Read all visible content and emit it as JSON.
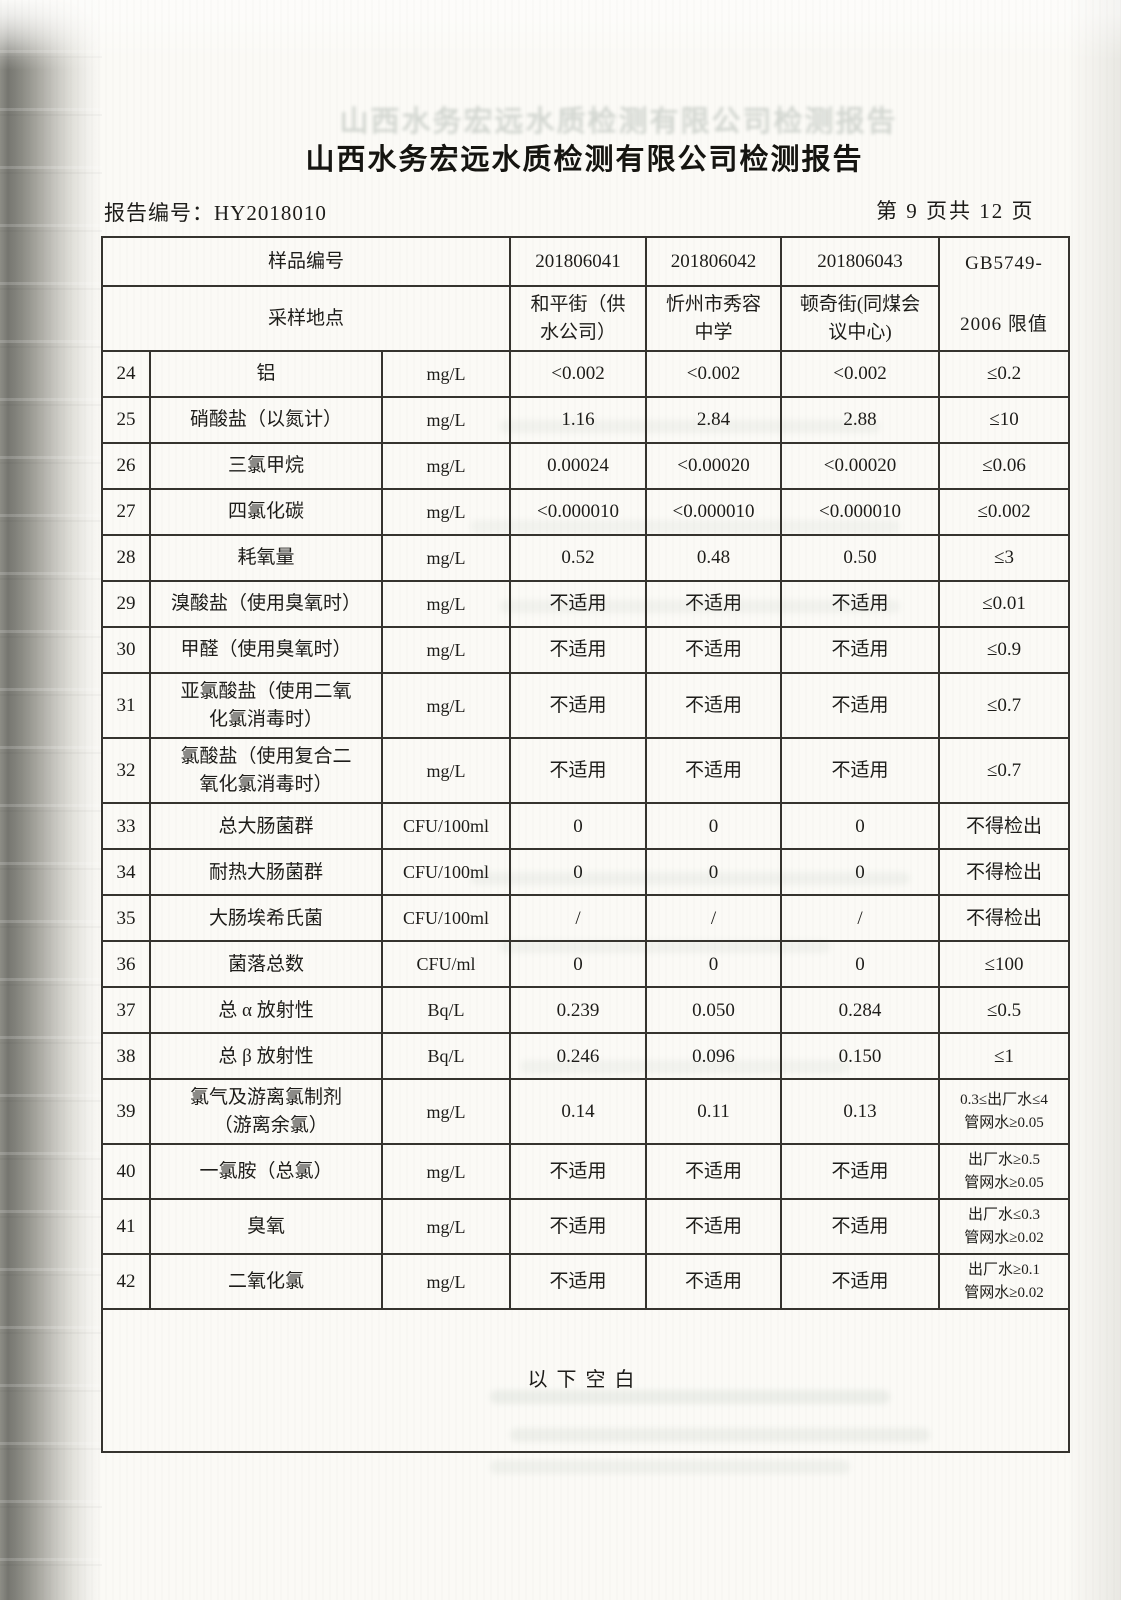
{
  "page": {
    "title": "山西水务宏远水质检测有限公司检测报告",
    "report_no_label": "报告编号：",
    "report_no": "HY2018010",
    "page_info": "第 9 页共 12 页"
  },
  "table": {
    "header": {
      "sample_id_label": "样品编号",
      "location_label": "采样地点",
      "sample_ids": [
        "201806041",
        "201806042",
        "201806043"
      ],
      "locations": [
        "和平街（供\n水公司）",
        "忻州市秀容\n中学",
        "顿奇街(同煤会\n议中心)"
      ],
      "limit_header_line1": "GB5749-",
      "limit_header_line2": "2006 限值"
    },
    "rows": [
      {
        "no": "24",
        "name": "铝",
        "unit": "mg/L",
        "values": [
          "<0.002",
          "<0.002",
          "<0.002"
        ],
        "limit": "≤0.2"
      },
      {
        "no": "25",
        "name": "硝酸盐（以氮计）",
        "unit": "mg/L",
        "values": [
          "1.16",
          "2.84",
          "2.88"
        ],
        "limit": "≤10"
      },
      {
        "no": "26",
        "name": "三氯甲烷",
        "unit": "mg/L",
        "values": [
          "0.00024",
          "<0.00020",
          "<0.00020"
        ],
        "limit": "≤0.06"
      },
      {
        "no": "27",
        "name": "四氯化碳",
        "unit": "mg/L",
        "values": [
          "<0.000010",
          "<0.000010",
          "<0.000010"
        ],
        "limit": "≤0.002"
      },
      {
        "no": "28",
        "name": "耗氧量",
        "unit": "mg/L",
        "values": [
          "0.52",
          "0.48",
          "0.50"
        ],
        "limit": "≤3"
      },
      {
        "no": "29",
        "name": "溴酸盐（使用臭氧时）",
        "unit": "mg/L",
        "values": [
          "不适用",
          "不适用",
          "不适用"
        ],
        "limit": "≤0.01"
      },
      {
        "no": "30",
        "name": "甲醛（使用臭氧时）",
        "unit": "mg/L",
        "values": [
          "不适用",
          "不适用",
          "不适用"
        ],
        "limit": "≤0.9"
      },
      {
        "no": "31",
        "name": "亚氯酸盐（使用二氧\n化氯消毒时）",
        "unit": "mg/L",
        "values": [
          "不适用",
          "不适用",
          "不适用"
        ],
        "limit": "≤0.7"
      },
      {
        "no": "32",
        "name": "氯酸盐（使用复合二\n氧化氯消毒时）",
        "unit": "mg/L",
        "values": [
          "不适用",
          "不适用",
          "不适用"
        ],
        "limit": "≤0.7"
      },
      {
        "no": "33",
        "name": "总大肠菌群",
        "unit": "CFU/100ml",
        "values": [
          "0",
          "0",
          "0"
        ],
        "limit": "不得检出"
      },
      {
        "no": "34",
        "name": "耐热大肠菌群",
        "unit": "CFU/100ml",
        "values": [
          "0",
          "0",
          "0"
        ],
        "limit": "不得检出"
      },
      {
        "no": "35",
        "name": "大肠埃希氏菌",
        "unit": "CFU/100ml",
        "values": [
          "/",
          "/",
          "/"
        ],
        "limit": "不得检出"
      },
      {
        "no": "36",
        "name": "菌落总数",
        "unit": "CFU/ml",
        "values": [
          "0",
          "0",
          "0"
        ],
        "limit": "≤100"
      },
      {
        "no": "37",
        "name": "总 α 放射性",
        "unit": "Bq/L",
        "values": [
          "0.239",
          "0.050",
          "0.284"
        ],
        "limit": "≤0.5"
      },
      {
        "no": "38",
        "name": "总 β 放射性",
        "unit": "Bq/L",
        "values": [
          "0.246",
          "0.096",
          "0.150"
        ],
        "limit": "≤1"
      },
      {
        "no": "39",
        "name": "氯气及游离氯制剂\n　（游离余氯）",
        "unit": "mg/L",
        "values": [
          "0.14",
          "0.11",
          "0.13"
        ],
        "limit": "0.3≤出厂水≤4\n管网水≥0.05"
      },
      {
        "no": "40",
        "name": "一氯胺（总氯）",
        "unit": "mg/L",
        "values": [
          "不适用",
          "不适用",
          "不适用"
        ],
        "limit": "出厂水≥0.5\n管网水≥0.05"
      },
      {
        "no": "41",
        "name": "臭氧",
        "unit": "mg/L",
        "values": [
          "不适用",
          "不适用",
          "不适用"
        ],
        "limit": "出厂水≤0.3\n管网水≥0.02"
      },
      {
        "no": "42",
        "name": "二氧化氯",
        "unit": "mg/L",
        "values": [
          "不适用",
          "不适用",
          "不适用"
        ],
        "limit": "出厂水≥0.1\n管网水≥0.02"
      }
    ],
    "footer_note": "以下空白"
  }
}
